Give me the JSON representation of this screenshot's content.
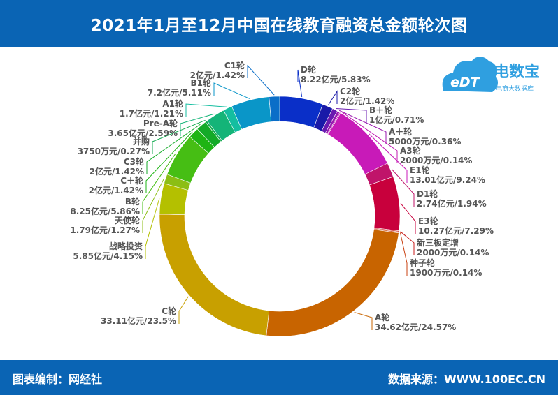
{
  "title": "2021年1月至12月中国在线教育融资总金额轮次图",
  "footer": {
    "left": "图表编制：网经社",
    "right": "数据来源：WWW.100EC.CN"
  },
  "logo": {
    "badge": "eDT",
    "name": "电数宝",
    "sub": "电商大数据库"
  },
  "colors": {
    "header_bg": "#0a64b4",
    "brand": "#2f9fe0"
  },
  "chart_data": {
    "type": "pie",
    "variant": "donut",
    "unit": "亿元",
    "slices": [
      {
        "name": "D轮",
        "value_label": "8.22亿元/5.83%",
        "value": 8.22,
        "percent": 5.83,
        "color": "#0a2fc8"
      },
      {
        "name": "C2轮",
        "value_label": "2亿元/1.42%",
        "value": 2,
        "percent": 1.42,
        "color": "#1a1aa8"
      },
      {
        "name": "B＋轮",
        "value_label": "1亿元/0.71%",
        "value": 1,
        "percent": 0.71,
        "color": "#6a1ab0"
      },
      {
        "name": "A＋轮",
        "value_label": "5000万元/0.36%",
        "value": 0.5,
        "percent": 0.36,
        "color": "#9a1ab0"
      },
      {
        "name": "A3轮",
        "value_label": "2000万元/0.14%",
        "value": 0.2,
        "percent": 0.14,
        "color": "#c01ab0"
      },
      {
        "name": "E1轮",
        "value_label": "13.01亿元/9.24%",
        "value": 13.01,
        "percent": 9.24,
        "color": "#c81ab8"
      },
      {
        "name": "D1轮",
        "value_label": "2.74亿元/1.94%",
        "value": 2.74,
        "percent": 1.94,
        "color": "#c0146a"
      },
      {
        "name": "E3轮",
        "value_label": "10.27亿元/7.29%",
        "value": 10.27,
        "percent": 7.29,
        "color": "#c8003c"
      },
      {
        "name": "新三板定增",
        "value_label": "2000万元/0.14%",
        "value": 0.2,
        "percent": 0.14,
        "color": "#c81e1e"
      },
      {
        "name": "种子轮",
        "value_label": "1900万元/0.14%",
        "value": 0.19,
        "percent": 0.14,
        "color": "#c84010"
      },
      {
        "name": "A轮",
        "value_label": "34.62亿元/24.57%",
        "value": 34.62,
        "percent": 24.57,
        "color": "#c86400"
      },
      {
        "name": "C轮",
        "value_label": "33.11亿元/23.5%",
        "value": 33.11,
        "percent": 23.5,
        "color": "#c8a000"
      },
      {
        "name": "战略投资",
        "value_label": "5.85亿元/4.15%",
        "value": 5.85,
        "percent": 4.15,
        "color": "#b4c000"
      },
      {
        "name": "天使轮",
        "value_label": "1.79亿元/1.27%",
        "value": 1.79,
        "percent": 1.27,
        "color": "#8cbe14"
      },
      {
        "name": "B轮",
        "value_label": "8.25亿元/5.86%",
        "value": 8.25,
        "percent": 5.86,
        "color": "#46be14"
      },
      {
        "name": "C＋轮",
        "value_label": "2亿元/1.42%",
        "value": 2,
        "percent": 1.42,
        "color": "#1eb414"
      },
      {
        "name": "C3轮",
        "value_label": "2亿元/1.42%",
        "value": 2,
        "percent": 1.42,
        "color": "#14aa28"
      },
      {
        "name": "并购",
        "value_label": "3750万元/0.27%",
        "value": 0.375,
        "percent": 0.27,
        "color": "#14aa50"
      },
      {
        "name": "Pre-A轮",
        "value_label": "3.65亿元/2.59%",
        "value": 3.65,
        "percent": 2.59,
        "color": "#14b478"
      },
      {
        "name": "A1轮",
        "value_label": "1.7亿元/1.21%",
        "value": 1.7,
        "percent": 1.21,
        "color": "#14bea0"
      },
      {
        "name": "B1轮",
        "value_label": "7.2亿元/5.11%",
        "value": 7.2,
        "percent": 5.11,
        "color": "#0a96c8"
      },
      {
        "name": "C1轮",
        "value_label": "2亿元/1.42%",
        "value": 2,
        "percent": 1.42,
        "color": "#0a6ec8"
      }
    ]
  }
}
